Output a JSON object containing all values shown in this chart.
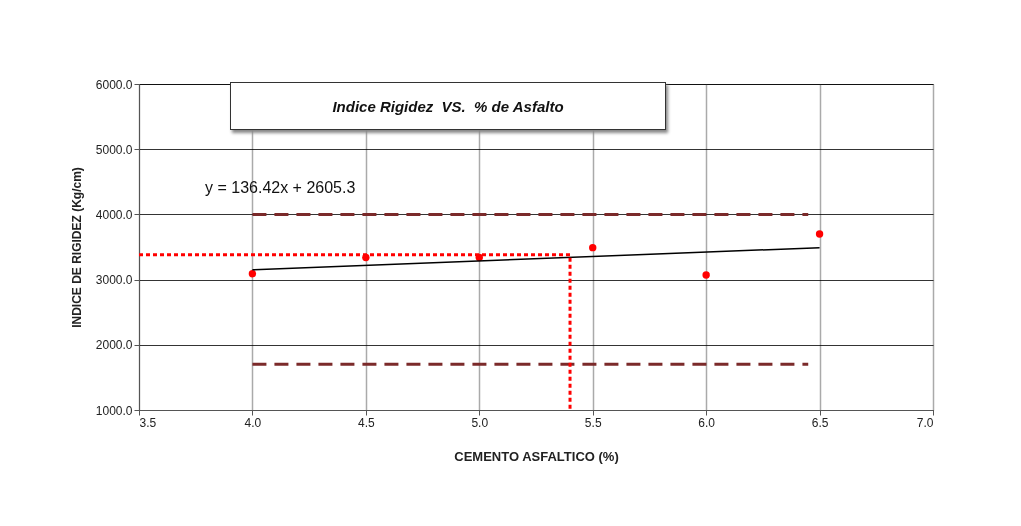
{
  "chart_data": {
    "type": "scatter",
    "title": "Indice Rigidez  VS.  % de Asfalto",
    "xlabel": "CEMENTO ASFALTICO (%)",
    "ylabel": "INDICE DE RIGIDEZ (Kg/cm)",
    "x": [
      4.0,
      4.5,
      5.0,
      5.5,
      6.0,
      6.5
    ],
    "series": [
      {
        "color": "#ff0000",
        "marker": "circle",
        "values": [
          3090,
          3340,
          3340,
          3490,
          3070,
          3700
        ]
      },
      {
        "type": "line",
        "color": "#000000",
        "line_style": "solid",
        "x": [
          4.0,
          6.5
        ],
        "values": [
          3150,
          3490
        ]
      },
      {
        "type": "line",
        "color": "#7b2a2a",
        "line_style": "dashed",
        "x": [
          4.0,
          6.45
        ],
        "values": [
          4000,
          4000
        ]
      },
      {
        "type": "line",
        "color": "#7b2a2a",
        "line_style": "dashed",
        "x": [
          4.0,
          6.45
        ],
        "values": [
          1700,
          1700
        ]
      },
      {
        "type": "line",
        "color": "#ff0000",
        "line_style": "dotted",
        "x": [
          3.5,
          5.4,
          5.4
        ],
        "values": [
          3380,
          3380,
          1000
        ]
      }
    ],
    "annotations": [
      "y = 136.42x + 2605.3"
    ],
    "xlim": [
      3.5,
      7.0
    ],
    "xticks": [
      {
        "value": 3.5,
        "label": "3.5"
      },
      {
        "value": 4.0,
        "label": "4.0"
      },
      {
        "value": 4.5,
        "label": "4.5"
      },
      {
        "value": 5.0,
        "label": "5.0"
      },
      {
        "value": 5.5,
        "label": "5.5"
      },
      {
        "value": 6.0,
        "label": "6.0"
      },
      {
        "value": 6.5,
        "label": "6.5"
      },
      {
        "value": 7.0,
        "label": "7.0"
      }
    ],
    "ylim": [
      1000,
      6000
    ],
    "yticks": [
      {
        "value": 1000,
        "label": "1000.0"
      },
      {
        "value": 2000,
        "label": "2000.0"
      },
      {
        "value": 3000,
        "label": "3000.0"
      },
      {
        "value": 4000,
        "label": "4000.0"
      },
      {
        "value": 5000,
        "label": "5000.0"
      },
      {
        "value": 6000,
        "label": "6000.0"
      }
    ],
    "grid": true
  }
}
